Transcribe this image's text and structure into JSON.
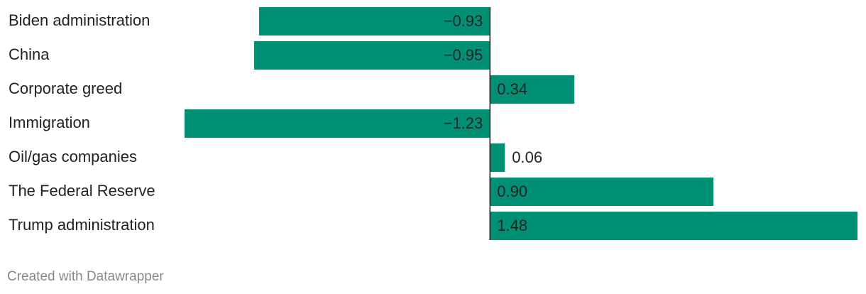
{
  "chart_data": {
    "type": "bar",
    "orientation": "horizontal",
    "categories": [
      "Biden administration",
      "China",
      "Corporate greed",
      "Immigration",
      "Oil/gas companies",
      "The Federal Reserve",
      "Trump administration"
    ],
    "values": [
      -0.93,
      -0.95,
      0.34,
      -1.23,
      0.06,
      0.9,
      1.48
    ],
    "value_labels": [
      "−0.93",
      "−0.95",
      "0.34",
      "−1.23",
      "0.06",
      "0.90",
      "1.48"
    ],
    "color": "#009175"
  },
  "footer": "Created with Datawrapper"
}
